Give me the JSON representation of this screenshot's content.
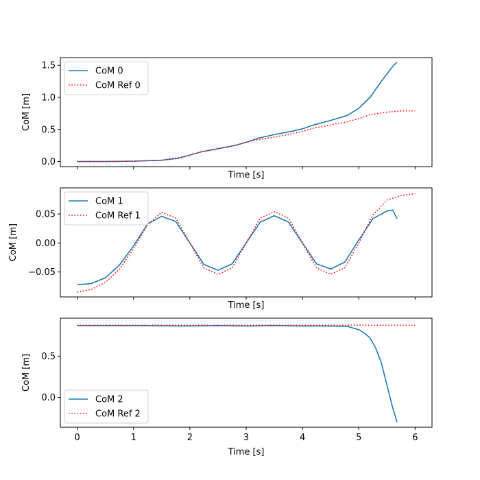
{
  "colors": {
    "com": "#1f77b4",
    "ref": "#ff0000"
  },
  "chart_data": [
    {
      "type": "line",
      "xlabel": "Time [s]",
      "ylabel": "CoM [m]",
      "xlim": [
        -0.3,
        6.3
      ],
      "ylim": [
        -0.08,
        1.62
      ],
      "xticks": [
        0,
        1,
        2,
        3,
        4,
        5,
        6
      ],
      "show_xtick_labels": false,
      "yticks": [
        0.0,
        0.5,
        1.0,
        1.5
      ],
      "ytick_labels": [
        "0.0",
        "0.5",
        "1.0",
        "1.5"
      ],
      "legend": "upper-left",
      "series": [
        {
          "name": "CoM 0",
          "style": "solid",
          "x": [
            0,
            0.5,
            1.0,
            1.5,
            1.8,
            2.0,
            2.2,
            2.5,
            2.8,
            3.0,
            3.2,
            3.5,
            3.8,
            4.0,
            4.2,
            4.5,
            4.8,
            5.0,
            5.2,
            5.4,
            5.6,
            5.68
          ],
          "y": [
            0.0,
            0.0,
            0.005,
            0.02,
            0.05,
            0.1,
            0.15,
            0.2,
            0.25,
            0.3,
            0.36,
            0.42,
            0.47,
            0.51,
            0.57,
            0.64,
            0.72,
            0.83,
            1.0,
            1.25,
            1.48,
            1.55
          ]
        },
        {
          "name": "CoM Ref 0",
          "style": "dotted",
          "x": [
            0,
            0.5,
            1.0,
            1.5,
            1.8,
            2.0,
            2.2,
            2.5,
            2.8,
            3.0,
            3.2,
            3.5,
            3.8,
            4.0,
            4.2,
            4.5,
            4.8,
            5.0,
            5.2,
            5.5,
            5.8,
            6.0
          ],
          "y": [
            0.0,
            0.0,
            0.005,
            0.02,
            0.06,
            0.1,
            0.15,
            0.2,
            0.25,
            0.3,
            0.34,
            0.38,
            0.43,
            0.47,
            0.52,
            0.57,
            0.62,
            0.67,
            0.73,
            0.77,
            0.79,
            0.79
          ]
        }
      ]
    },
    {
      "type": "line",
      "xlabel": "Time [s]",
      "ylabel": "CoM [m]",
      "xlim": [
        -0.3,
        6.3
      ],
      "ylim": [
        -0.093,
        0.095
      ],
      "xticks": [
        0,
        1,
        2,
        3,
        4,
        5,
        6
      ],
      "show_xtick_labels": false,
      "yticks": [
        -0.05,
        0.0,
        0.05
      ],
      "ytick_labels": [
        "−0.05",
        "0.00",
        "0.05"
      ],
      "legend": "upper-left",
      "series": [
        {
          "name": "CoM 1",
          "style": "solid",
          "x": [
            0,
            0.25,
            0.5,
            0.75,
            1.0,
            1.25,
            1.5,
            1.75,
            2.0,
            2.25,
            2.5,
            2.75,
            3.0,
            3.25,
            3.5,
            3.75,
            4.0,
            4.25,
            4.5,
            4.75,
            5.0,
            5.25,
            5.5,
            5.6,
            5.68
          ],
          "y": [
            -0.072,
            -0.07,
            -0.06,
            -0.038,
            -0.005,
            0.033,
            0.046,
            0.037,
            0.0,
            -0.037,
            -0.047,
            -0.036,
            0.0,
            0.036,
            0.047,
            0.036,
            0.0,
            -0.036,
            -0.045,
            -0.033,
            0.005,
            0.042,
            0.055,
            0.057,
            0.042
          ]
        },
        {
          "name": "CoM Ref 1",
          "style": "dotted",
          "x": [
            0,
            0.25,
            0.5,
            0.75,
            1.0,
            1.25,
            1.5,
            1.75,
            2.0,
            2.25,
            2.5,
            2.75,
            3.0,
            3.25,
            3.5,
            3.75,
            4.0,
            4.25,
            4.5,
            4.75,
            5.0,
            5.25,
            5.5,
            5.75,
            6.0
          ],
          "y": [
            -0.085,
            -0.08,
            -0.068,
            -0.045,
            -0.01,
            0.032,
            0.053,
            0.043,
            0.0,
            -0.043,
            -0.054,
            -0.043,
            0.0,
            0.043,
            0.054,
            0.043,
            0.0,
            -0.043,
            -0.054,
            -0.043,
            0.0,
            0.048,
            0.074,
            0.082,
            0.085
          ]
        }
      ]
    },
    {
      "type": "line",
      "xlabel": "Time [s]",
      "ylabel": "CoM [m]",
      "xlim": [
        -0.3,
        6.3
      ],
      "ylim": [
        -0.36,
        0.96
      ],
      "xticks": [
        0,
        1,
        2,
        3,
        4,
        5,
        6
      ],
      "show_xtick_labels": true,
      "xtick_labels": [
        "0",
        "1",
        "2",
        "3",
        "4",
        "5",
        "6"
      ],
      "yticks": [
        0.0,
        0.5
      ],
      "ytick_labels": [
        "0.0",
        "0.5"
      ],
      "legend": "lower-left",
      "series": [
        {
          "name": "CoM 2",
          "style": "solid",
          "x": [
            0,
            1.0,
            2.0,
            2.5,
            3.0,
            3.5,
            4.0,
            4.5,
            4.8,
            5.0,
            5.1,
            5.2,
            5.3,
            5.4,
            5.5,
            5.6,
            5.68
          ],
          "y": [
            0.87,
            0.87,
            0.865,
            0.87,
            0.865,
            0.87,
            0.865,
            0.865,
            0.86,
            0.82,
            0.78,
            0.72,
            0.6,
            0.42,
            0.15,
            -0.12,
            -0.3
          ]
        },
        {
          "name": "CoM Ref 2",
          "style": "dotted",
          "x": [
            0,
            1.0,
            2.0,
            3.0,
            4.0,
            5.0,
            6.0
          ],
          "y": [
            0.875,
            0.875,
            0.875,
            0.875,
            0.875,
            0.875,
            0.875
          ]
        }
      ]
    }
  ]
}
